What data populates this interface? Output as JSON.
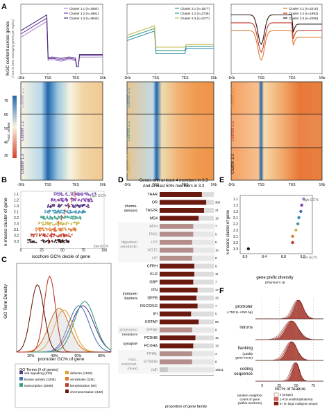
{
  "panel_letters": [
    "A",
    "B",
    "C",
    "D",
    "E",
    "F"
  ],
  "colors": {
    "c11": "#a98bd0",
    "c12": "#7b3fa8",
    "c13": "#4a2d7a",
    "c21": "#3a8fb5",
    "c22": "#3aa08a",
    "c23": "#c8b84a",
    "c31": "#e07a2e",
    "c32": "#c0392b",
    "c33": "#2a1010",
    "heat_low": "#2166ac",
    "heat_mid": "#f7f3e0",
    "heat_high": "#d6402a",
    "dark_red": "#6b1a10",
    "accent_red": "#c0392b"
  },
  "panelA": {
    "ylabel": "%GC content across genes",
    "ylabel_sub": "(TSS to TES; averaging genes per region)",
    "ticks": [
      "-1Kb",
      "TSS",
      "TES",
      "1Kb"
    ],
    "legends": [
      [
        "Cluster 1.1 (n=1584)",
        "Cluster 1.2 (n=1981)",
        "Cluster 1.3 (n=2840)"
      ],
      [
        "Cluster 2.1 (n=1577)",
        "Cluster 2.2 (n=2735)",
        "Cluster 2.3 (n=2177)"
      ],
      [
        "Cluster 3.1 (n=2210)",
        "Cluster 3.2 (n=1893)",
        "Cluster 3.3 (n=2296)"
      ]
    ],
    "heat_labels": [
      [
        "Cluster 1.1",
        "Cluster 1.2",
        "Cluster 1.3"
      ],
      [
        "Cluster 2.1",
        "Cluster 2.2",
        "Cluster 2.3"
      ],
      [
        "Cluster 3.1",
        "Cluster 3.2",
        "Cluster 3.3"
      ]
    ],
    "colorbar_label": "%GC content",
    "colorbar_ticks": [
      "70",
      "60",
      "50",
      "40",
      "30"
    ]
  },
  "panelB": {
    "ylabel": "k-means cluster of gene",
    "xlabel": "isochore GC% decile of gene",
    "xticks": [
      "0",
      "25",
      "50",
      "75",
      "100"
    ],
    "rows": [
      "1.1",
      "1.2",
      "1.3",
      "2.1",
      "2.2",
      "2.3",
      "3.1",
      "3.2",
      "3.3"
    ],
    "high": "high GC%",
    "low": "low GC%"
  },
  "panelC": {
    "ylabel": "GO Term Density",
    "xlabel": "promoter GC% of gene",
    "xticks": [
      "20%",
      "40%",
      "60%",
      "80%"
    ],
    "legend_title": "GO Terms (# of genes)",
    "legend": [
      {
        "name": "wnt signaling (432)",
        "color": "#5a3c8a"
      },
      {
        "name": "defense (1522)",
        "color": "#e0a030"
      },
      {
        "name": "kinase activity (1306)",
        "color": "#4a70b8"
      },
      {
        "name": "xenobiosis (104)",
        "color": "#e07a20"
      },
      {
        "name": "transcription (3269)",
        "color": "#3a9a78"
      },
      {
        "name": "keratinization (80)",
        "color": "#c0392b"
      },
      {
        "name": "chemosensation (430)",
        "color": "#6b1a10"
      }
    ]
  },
  "panelD": {
    "title1": "Genes with at least 4 members in 3.3",
    "title2": "And at least 50% members in 3.3",
    "xlabel": "proportion of gene family",
    "groups": [
      {
        "label": "chemo-\nsensors",
        "rows": [
          [
            "TAAR",
            "",
            "0.78"
          ],
          [
            "OR",
            "303",
            "0.86"
          ],
          [
            "TAS2R",
            "21",
            "0.82"
          ],
          [
            "MS4",
            "15",
            "0.72"
          ]
        ]
      },
      {
        "label": "digestive/\nxenobiotic",
        "rows": [
          [
            "ADH",
            "7",
            "0.62"
          ],
          [
            "FMO",
            "5",
            "0.62"
          ],
          [
            "LYZ",
            "5",
            "0.60"
          ],
          [
            "UGT2",
            "10",
            "0.62"
          ],
          [
            "LIP",
            "8",
            "0.60"
          ]
        ]
      },
      {
        "label": "immune/\nbarriers",
        "rows": [
          [
            "CFRH",
            "6",
            "0.64"
          ],
          [
            "KLR",
            "11",
            "0.64"
          ],
          [
            "GBP",
            "7",
            "0.62"
          ],
          [
            "IFN",
            "17",
            "0.70"
          ],
          [
            "DEFB",
            "33",
            "0.68"
          ],
          [
            "DSC/DSG",
            "7",
            "0.70"
          ],
          [
            "IFI",
            "5",
            "0.58"
          ],
          [
            "KRTAP",
            "98",
            "0.72"
          ]
        ]
      },
      {
        "label": "proteases/\ninhibitors",
        "rows": [
          [
            "SPINK",
            "9",
            "0.60"
          ]
        ]
      },
      {
        "label": "synapse",
        "rows": [
          [
            "PCDHB",
            "15",
            "0.66"
          ],
          [
            "PCDHA",
            "13",
            "0.62"
          ]
        ]
      },
      {
        "label": "misc,\nunknown,\nmixed",
        "rows": [
          [
            "PPIAL",
            "4",
            "0.60"
          ],
          [
            "MTRNR",
            "8",
            "0.60"
          ],
          [
            "(all)",
            "18641",
            "0.15"
          ]
        ]
      }
    ]
  },
  "panelE": {
    "ylabel": "k-means cluster of gene",
    "xlabel": "gene prefix diversity",
    "xlabel_sub": "(Shannon's H)",
    "xticks": [
      "8.0",
      "8.4",
      "8.8",
      "9.2"
    ],
    "high": "high GC%",
    "low": "low GC%",
    "rows": [
      "1.1",
      "1.2",
      "1.3",
      "2.1",
      "2.2",
      "2.3",
      "3.1",
      "3.2",
      "3.3"
    ],
    "values": [
      9.22,
      9.18,
      9.16,
      9.12,
      9.1,
      9.06,
      8.99,
      8.99,
      8.07
    ]
  },
  "panelF": {
    "rows": [
      {
        "label": "promoter",
        "sub": "(-750 to +250 bp)"
      },
      {
        "label": "introns",
        "sub": ""
      },
      {
        "label": "flanking",
        "sub": "(±25kb\ngene locus)"
      },
      {
        "label": "coding\nsequence",
        "sub": ""
      }
    ],
    "xlabel": "GC% of feature",
    "xticks": [
      "0",
      "25",
      "50",
      "75"
    ],
    "legend_title": "tandem neighbor\ncount of gene\n(within isochore)",
    "legend": [
      "0 (unique)",
      "1-4 (in small duplications)",
      "5+ (in large multigene arrays)"
    ]
  }
}
